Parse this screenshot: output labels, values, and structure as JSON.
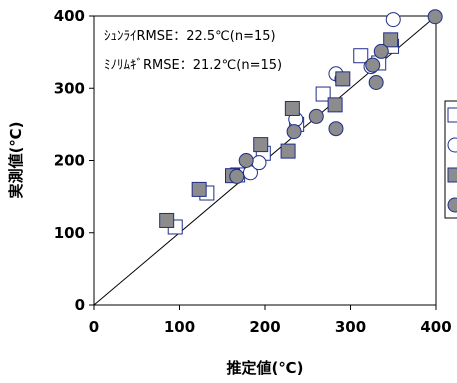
{
  "chart_data": {
    "type": "scatter",
    "xlabel": "推定値(℃)",
    "ylabel": "実測値(℃)",
    "xlim": [
      0,
      400
    ],
    "ylim": [
      0,
      400
    ],
    "xticks": [
      "0",
      "100",
      "200",
      "300",
      "400"
    ],
    "yticks": [
      "0",
      "100",
      "200",
      "300",
      "400"
    ],
    "grid": false,
    "reference_line": "y = x",
    "annotations": [
      "ｼｭﾝﾗｲRMSE：22.5℃(n=15)",
      "ﾐﾉﾘﾑｷﾞRMSE：21.2℃(n=15)"
    ],
    "legend_placement": "right (clipped at image edge)",
    "series": [
      {
        "marker": "open-square",
        "stroke": "#1f2d8a",
        "fill": "#ffffff",
        "points": [
          [
            95,
            108
          ],
          [
            132,
            155
          ],
          [
            168,
            180
          ],
          [
            198,
            210
          ],
          [
            237,
            250
          ],
          [
            268,
            292
          ],
          [
            312,
            345
          ],
          [
            333,
            335
          ],
          [
            348,
            358
          ]
        ]
      },
      {
        "marker": "open-circle",
        "stroke": "#1f2d8a",
        "fill": "#ffffff",
        "points": [
          [
            183,
            183
          ],
          [
            193,
            197
          ],
          [
            236,
            257
          ],
          [
            283,
            320
          ],
          [
            290,
            313
          ],
          [
            324,
            330
          ],
          [
            350,
            395
          ]
        ]
      },
      {
        "marker": "filled-square",
        "stroke": "#1f2d8a",
        "fill": "#8c8c8c",
        "points": [
          [
            85,
            117
          ],
          [
            123,
            160
          ],
          [
            162,
            179
          ],
          [
            195,
            222
          ],
          [
            227,
            213
          ],
          [
            232,
            272
          ],
          [
            282,
            277
          ],
          [
            291,
            313
          ],
          [
            347,
            367
          ]
        ]
      },
      {
        "marker": "filled-circle",
        "stroke": "#1f2d8a",
        "fill": "#8c8c8c",
        "points": [
          [
            167,
            178
          ],
          [
            178,
            200
          ],
          [
            234,
            240
          ],
          [
            260,
            261
          ],
          [
            283,
            244
          ],
          [
            326,
            332
          ],
          [
            330,
            308
          ],
          [
            336,
            351
          ],
          [
            399,
            399
          ]
        ]
      }
    ]
  }
}
